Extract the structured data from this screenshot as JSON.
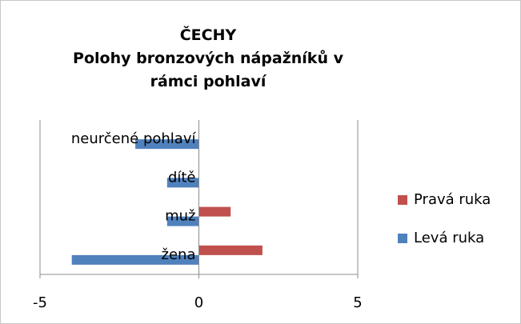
{
  "chart_data": {
    "type": "barh",
    "title": "ČECHY",
    "subtitle": "Polohy bronzových nápažníků v rámci pohlaví",
    "categories": [
      "žena",
      "muž",
      "dítě",
      "neurčené pohlaví"
    ],
    "series": [
      {
        "name": "Levá ruka",
        "color": "#4f81bd",
        "values": [
          -4,
          -1,
          -1,
          -2
        ]
      },
      {
        "name": "Pravá ruka",
        "color": "#c0504d",
        "values": [
          2,
          1,
          0,
          0
        ]
      }
    ],
    "xlim": [
      -5,
      5
    ],
    "xticks": [
      -5,
      0,
      5
    ],
    "grid": true,
    "legend": "right"
  }
}
